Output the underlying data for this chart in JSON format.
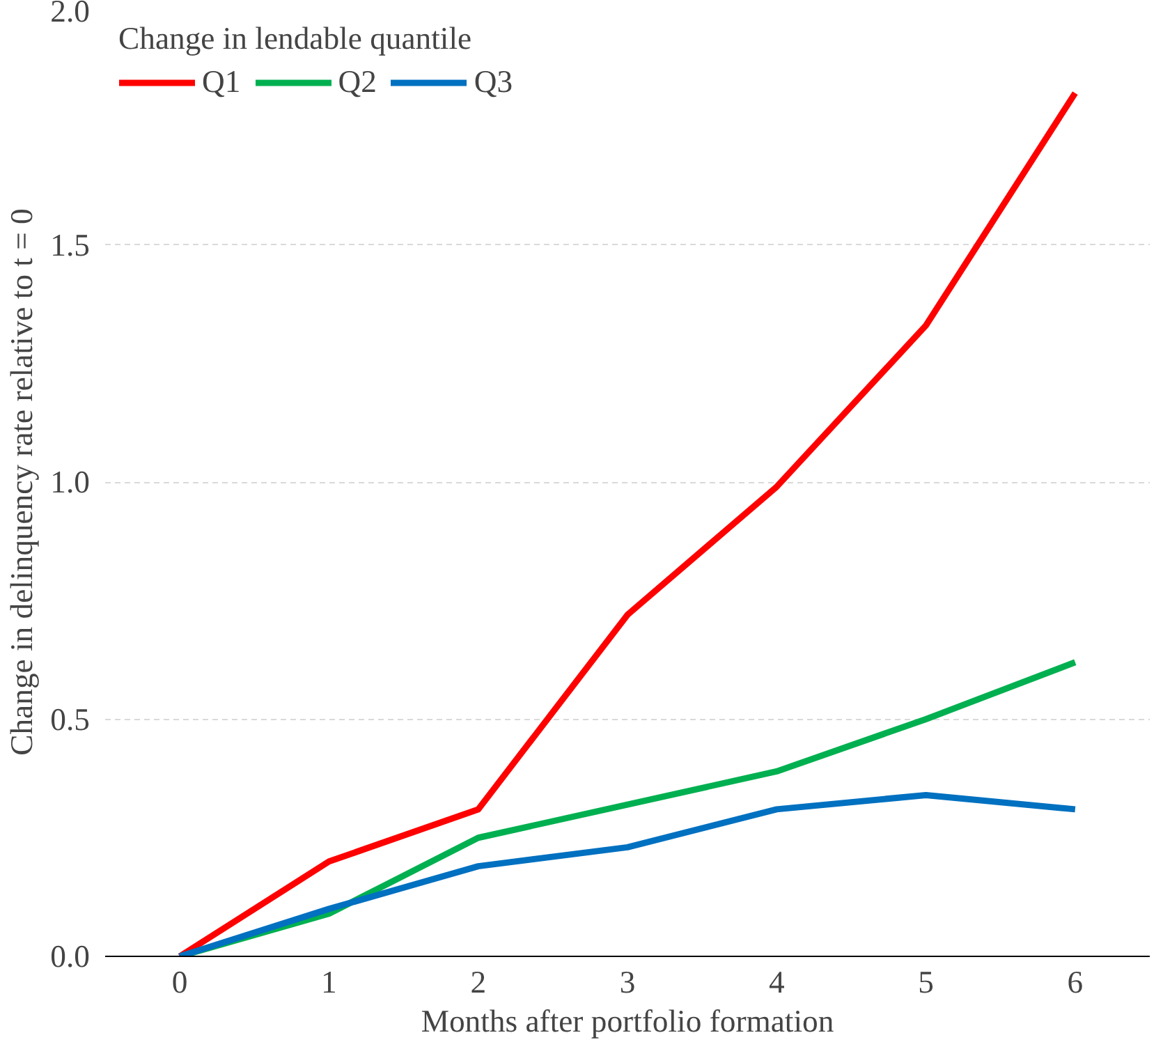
{
  "chart_data": {
    "type": "line",
    "xlabel": "Months after portfolio formation",
    "ylabel": "Change in delinquency rate relative to t = 0",
    "legend_title": "Change in lendable quantile",
    "categories": [
      "0",
      "1",
      "2",
      "3",
      "4",
      "5",
      "6"
    ],
    "series": [
      {
        "name": "Q1",
        "color": "#ff0000",
        "values": [
          0,
          0.2,
          0.31,
          0.72,
          0.99,
          1.33,
          1.82
        ]
      },
      {
        "name": "Q2",
        "color": "#00b050",
        "values": [
          0,
          0.09,
          0.25,
          0.32,
          0.39,
          0.5,
          0.62
        ]
      },
      {
        "name": "Q3",
        "color": "#0070c0",
        "values": [
          0,
          0.1,
          0.19,
          0.23,
          0.31,
          0.34,
          0.31
        ]
      }
    ],
    "ylim": [
      0,
      2
    ],
    "yticks": [
      {
        "value": 0,
        "label": "0.0"
      },
      {
        "value": 0.5,
        "label": "0.5"
      },
      {
        "value": 1,
        "label": "1.0"
      },
      {
        "value": 1.5,
        "label": "1.5"
      },
      {
        "value": 2,
        "label": "2.0"
      }
    ],
    "grid": "y",
    "legend": "top left",
    "marker": "none",
    "line_style": "solid"
  }
}
